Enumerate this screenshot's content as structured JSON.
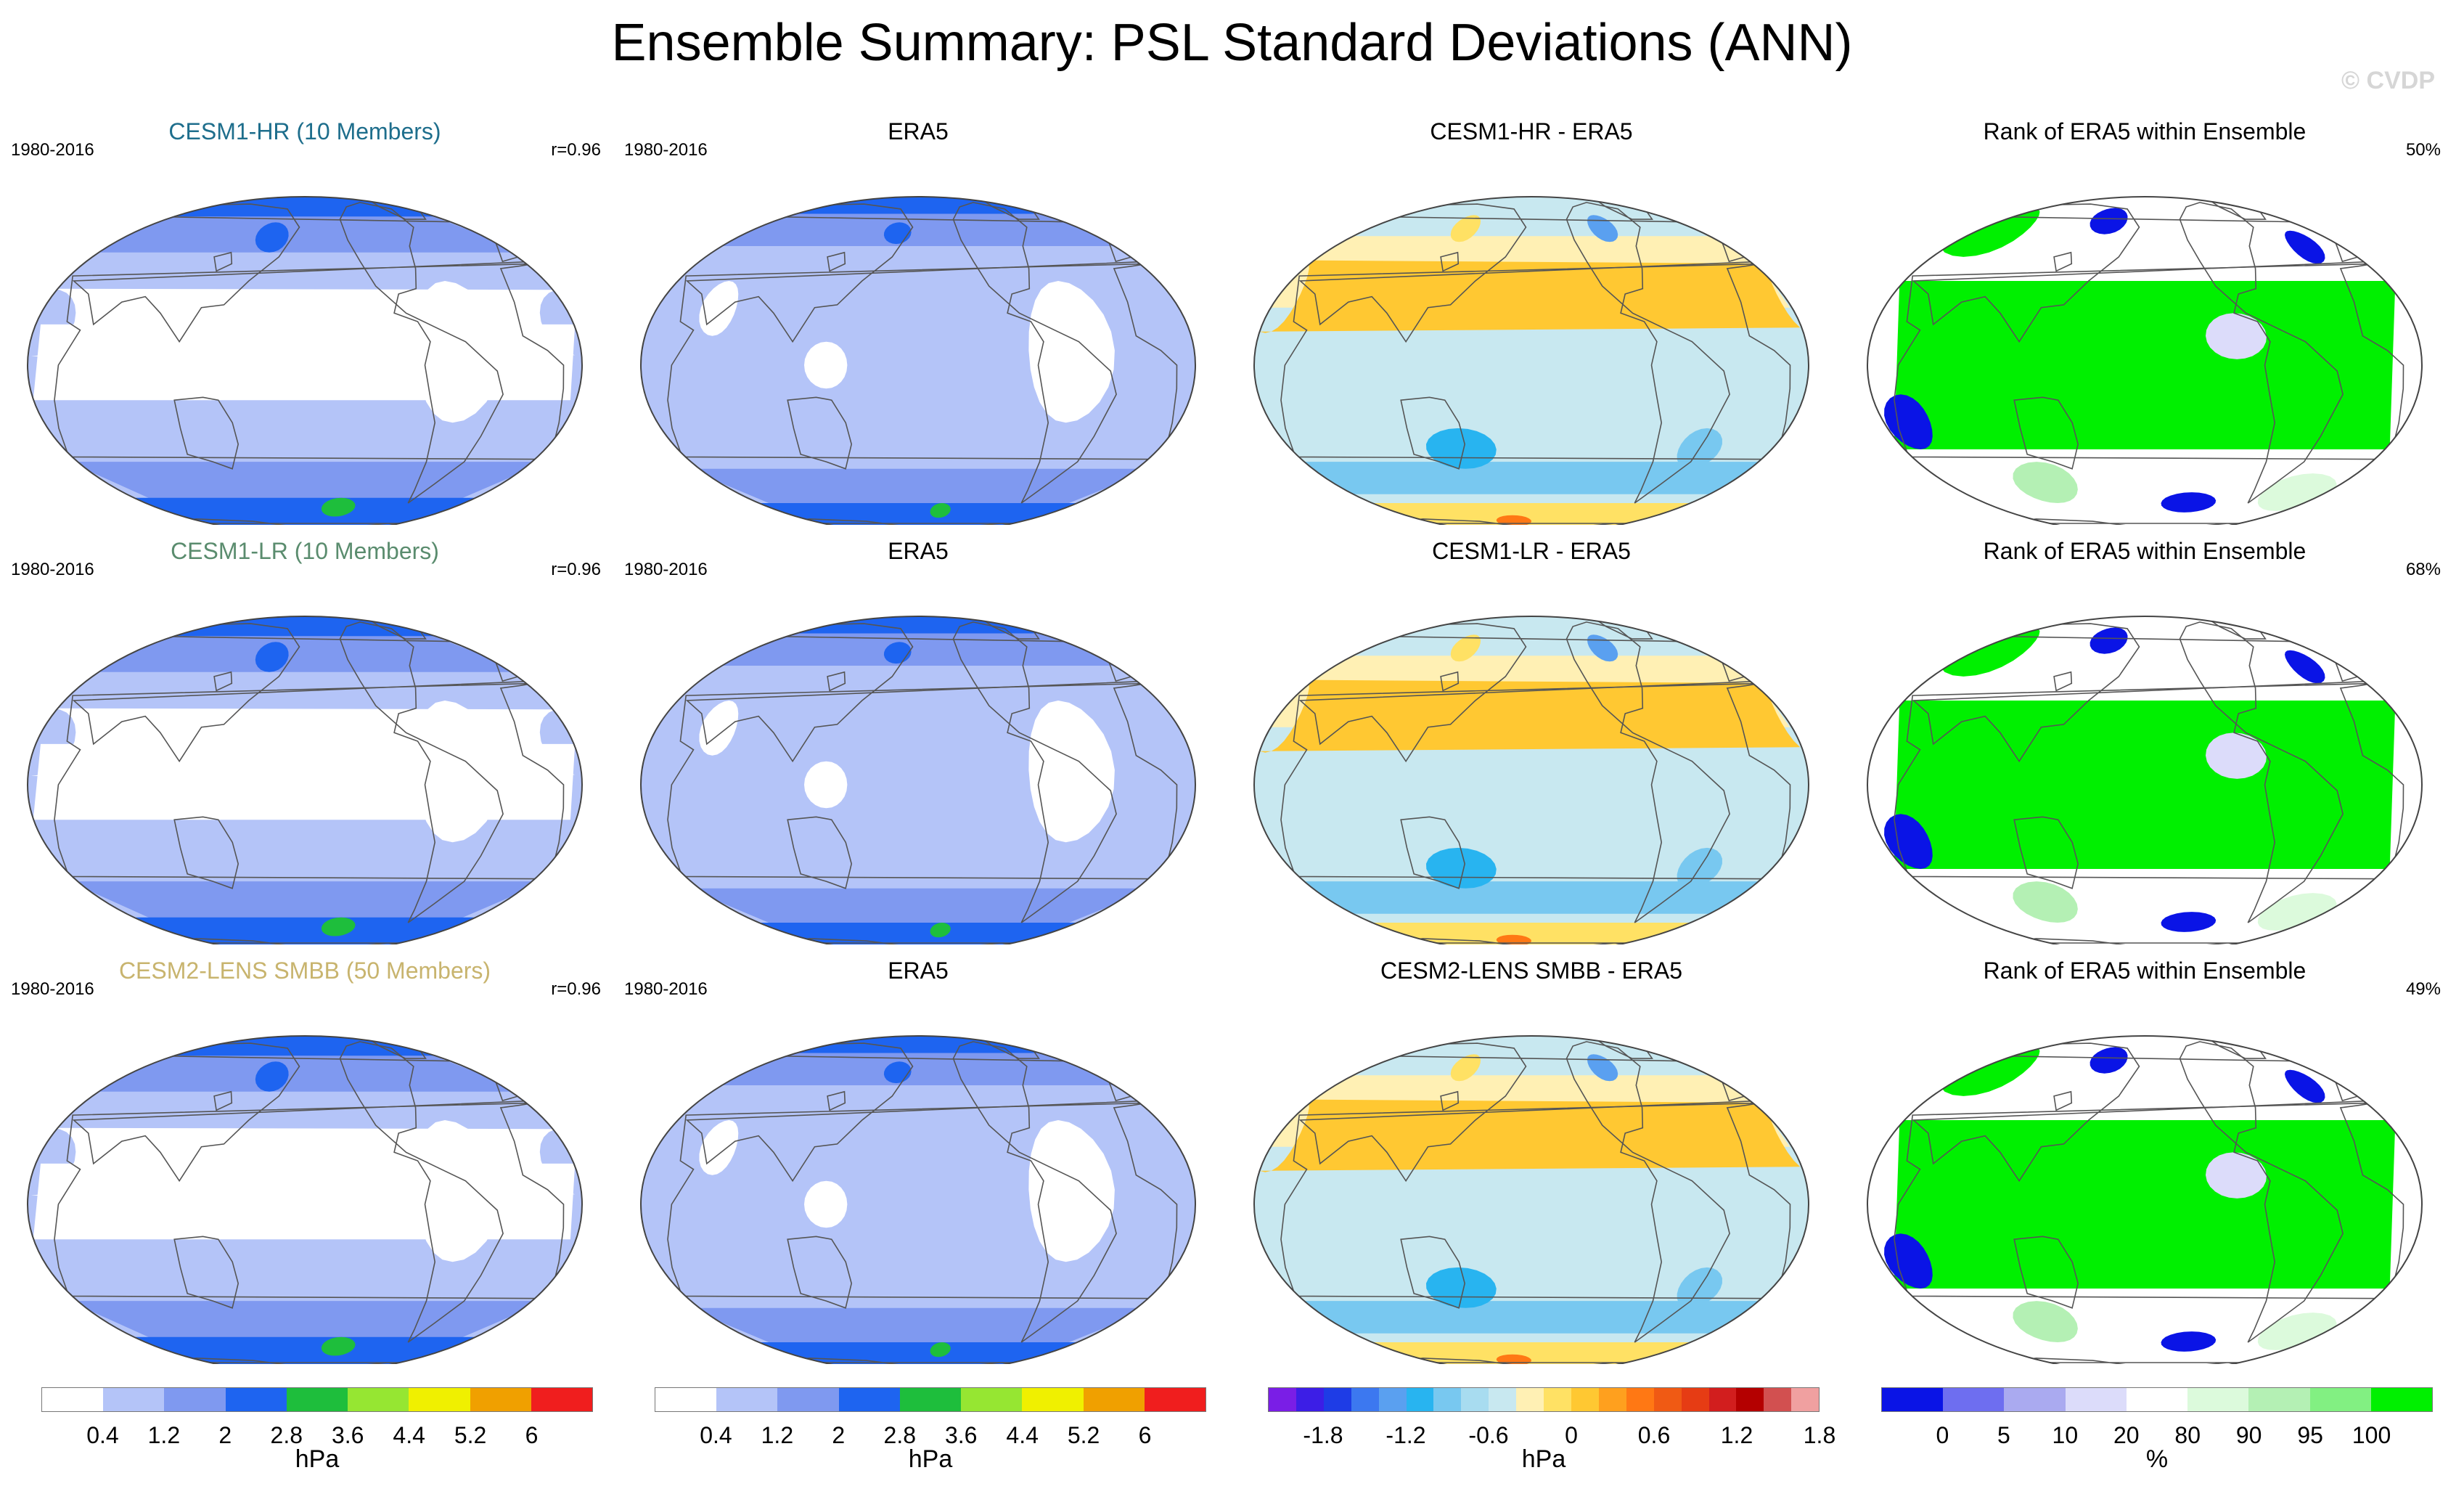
{
  "title": "Ensemble Summary: PSL Standard Deviations (ANN)",
  "watermark": "© CVDP",
  "colors": {
    "std_levels": [
      "#ffffff",
      "#b4c4f8",
      "#7f99f0",
      "#1e64f0",
      "#1ebe3c",
      "#96e632",
      "#f0f000",
      "#f0a000",
      "#f01e1e"
    ],
    "diff_levels": [
      "#7a1ee6",
      "#3c1ee6",
      "#1e3ce6",
      "#3c78f0",
      "#5aa0f0",
      "#28b4f0",
      "#78c8f0",
      "#a8dcf0",
      "#c8e8f0",
      "#fff0b4",
      "#ffe164",
      "#ffc832",
      "#ffa01e",
      "#ff7814",
      "#f05a14",
      "#e63c14",
      "#d21e1e",
      "#b40000",
      "#d25050",
      "#f0a0a0"
    ],
    "rank_levels": [
      "#0a14e6",
      "#6e6ef0",
      "#aaaaf0",
      "#dcdcfa",
      "#ffffff",
      "#dcfadc",
      "#b4f0b4",
      "#82f082",
      "#00f000"
    ],
    "coast": "#555555"
  },
  "rows": [
    {
      "model": {
        "title": "CESM1-HR (10 Members)",
        "title_color": "#1e6e8c",
        "years": "1980-2016",
        "stat": "r=0.96"
      },
      "obs": {
        "title": "ERA5",
        "years": "1980-2016"
      },
      "diff": {
        "title": "CESM1-HR - ERA5"
      },
      "rank": {
        "title": "Rank of ERA5 within Ensemble",
        "stat": "50%"
      }
    },
    {
      "model": {
        "title": "CESM1-LR (10 Members)",
        "title_color": "#5a8c6e",
        "years": "1980-2016",
        "stat": "r=0.96"
      },
      "obs": {
        "title": "ERA5",
        "years": "1980-2016"
      },
      "diff": {
        "title": "CESM1-LR - ERA5"
      },
      "rank": {
        "title": "Rank of ERA5 within Ensemble",
        "stat": "68%"
      }
    },
    {
      "model": {
        "title": "CESM2-LENS SMBB (50 Members)",
        "title_color": "#c8b46e",
        "years": "1980-2016",
        "stat": "r=0.96"
      },
      "obs": {
        "title": "ERA5",
        "years": "1980-2016"
      },
      "diff": {
        "title": "CESM2-LENS SMBB - ERA5"
      },
      "rank": {
        "title": "Rank of ERA5 within Ensemble",
        "stat": "49%"
      }
    }
  ],
  "colorbars": {
    "std": {
      "ticks": [
        "0.4",
        "1.2",
        "2",
        "2.8",
        "3.6",
        "4.4",
        "5.2",
        "6"
      ],
      "unit": "hPa"
    },
    "diff": {
      "ticks": [
        "-1.8",
        "-1.2",
        "-0.6",
        "0",
        "0.6",
        "1.2",
        "1.8"
      ],
      "unit": "hPa"
    },
    "rank": {
      "ticks": [
        "0",
        "5",
        "10",
        "20",
        "80",
        "90",
        "95",
        "100"
      ],
      "unit": "%"
    }
  }
}
